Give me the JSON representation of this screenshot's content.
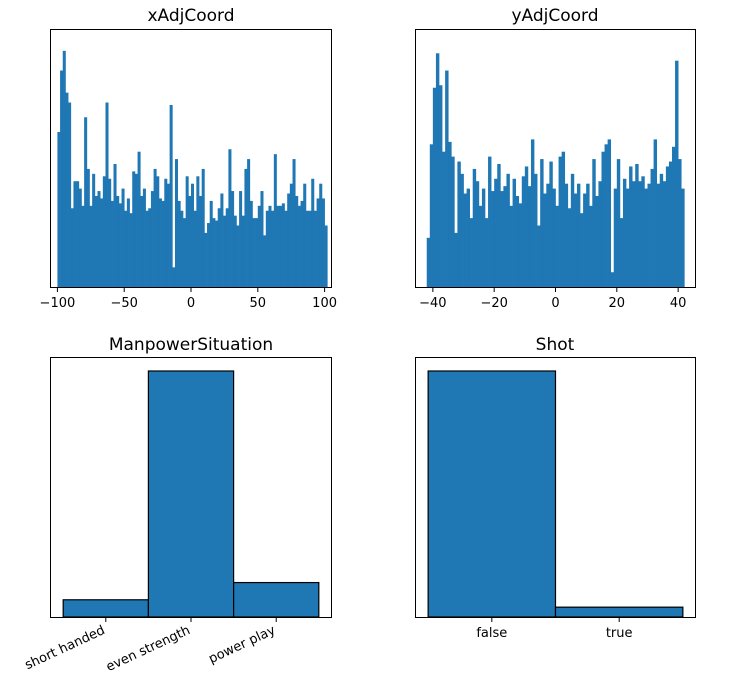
{
  "chart_data": [
    {
      "type": "bar",
      "title": "xAdjCoord",
      "xlabel": "",
      "ylabel": "",
      "xlim": [
        -104.8,
        104.8
      ],
      "ylim": [
        0,
        1
      ],
      "y_axis_shown": false,
      "xticks": [
        -100,
        -50,
        0,
        50,
        100
      ],
      "xtick_labels": [
        "−100",
        "−50",
        "0",
        "50",
        "100"
      ],
      "bin_start": -100,
      "bin_width": 2,
      "bar_color": "#1f77b4",
      "values": [
        0.63,
        0.88,
        0.96,
        0.79,
        0.75,
        0.32,
        0.43,
        0.43,
        0.4,
        0.33,
        0.69,
        0.48,
        0.33,
        0.46,
        0.37,
        0.39,
        0.36,
        0.45,
        0.75,
        0.44,
        0.35,
        0.5,
        0.37,
        0.34,
        0.4,
        0.31,
        0.36,
        0.3,
        0.47,
        0.46,
        0.55,
        0.37,
        0.4,
        0.31,
        0.32,
        0.39,
        0.48,
        0.45,
        0.36,
        0.35,
        0.44,
        0.42,
        0.74,
        0.08,
        0.52,
        0.35,
        0.31,
        0.28,
        0.45,
        0.37,
        0.42,
        0.31,
        0.45,
        0.37,
        0.48,
        0.22,
        0.26,
        0.35,
        0.28,
        0.27,
        0.32,
        0.38,
        0.29,
        0.32,
        0.56,
        0.39,
        0.29,
        0.25,
        0.39,
        0.29,
        0.48,
        0.52,
        0.35,
        0.28,
        0.28,
        0.33,
        0.39,
        0.21,
        0.31,
        0.33,
        0.31,
        0.54,
        0.33,
        0.33,
        0.34,
        0.31,
        0.38,
        0.42,
        0.52,
        0.37,
        0.33,
        0.35,
        0.42,
        0.31,
        0.31,
        0.44,
        0.31,
        0.36,
        0.42,
        0.36,
        0.25
      ]
    },
    {
      "type": "bar",
      "title": "yAdjCoord",
      "xlabel": "",
      "ylabel": "",
      "xlim": [
        -45.5,
        45.5
      ],
      "ylim": [
        0,
        1
      ],
      "y_axis_shown": false,
      "xticks": [
        -40,
        -20,
        0,
        20,
        40
      ],
      "xtick_labels": [
        "−40",
        "−20",
        "0",
        "20",
        "40"
      ],
      "bin_start": -42,
      "bin_width": 1,
      "bar_color": "#1f77b4",
      "values": [
        0.2,
        0.58,
        0.81,
        0.95,
        0.82,
        0.55,
        0.88,
        0.59,
        0.53,
        0.22,
        0.51,
        0.46,
        0.38,
        0.4,
        0.28,
        0.48,
        0.43,
        0.33,
        0.4,
        0.28,
        0.53,
        0.39,
        0.44,
        0.5,
        0.39,
        0.41,
        0.46,
        0.33,
        0.44,
        0.37,
        0.34,
        0.45,
        0.49,
        0.41,
        0.6,
        0.46,
        0.25,
        0.52,
        0.38,
        0.42,
        0.51,
        0.4,
        0.33,
        0.53,
        0.55,
        0.42,
        0.32,
        0.46,
        0.38,
        0.42,
        0.3,
        0.38,
        0.42,
        0.33,
        0.52,
        0.37,
        0.43,
        0.55,
        0.58,
        0.6,
        0.06,
        0.4,
        0.52,
        0.28,
        0.44,
        0.4,
        0.49,
        0.43,
        0.5,
        0.43,
        0.45,
        0.4,
        0.42,
        0.48,
        0.6,
        0.42,
        0.46,
        0.43,
        0.49,
        0.51,
        0.57,
        0.92,
        0.52,
        0.4
      ]
    },
    {
      "type": "bar",
      "title": "ManpowerSituation",
      "xlabel": "",
      "ylabel": "",
      "ylim": [
        0,
        1
      ],
      "y_axis_shown": false,
      "categories": [
        "short handed",
        "even strength",
        "power play"
      ],
      "tick_rotation_deg": -25,
      "values": [
        0.07,
        1.0,
        0.14
      ],
      "bar_color": "#1f77b4",
      "edge_color": "#000000"
    },
    {
      "type": "bar",
      "title": "Shot",
      "xlabel": "",
      "ylabel": "",
      "ylim": [
        0,
        1
      ],
      "y_axis_shown": false,
      "categories": [
        "false",
        "true"
      ],
      "values": [
        1.0,
        0.04
      ],
      "bar_color": "#1f77b4",
      "edge_color": "#000000"
    }
  ]
}
